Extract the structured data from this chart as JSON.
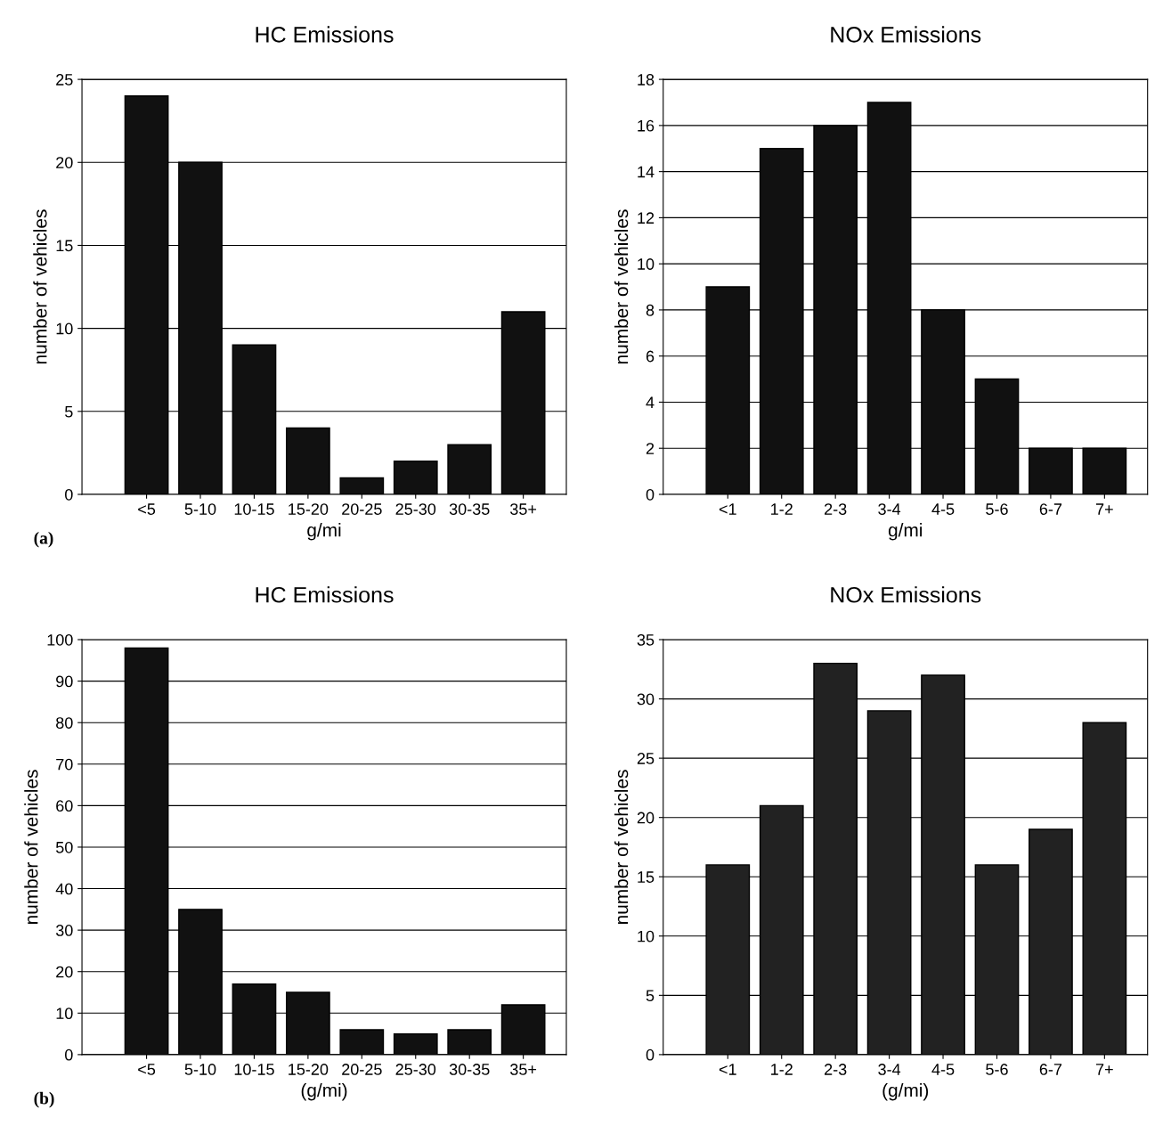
{
  "chart_data": [
    {
      "type": "bar",
      "title": "HC Emissions",
      "xlabel": "g/mi",
      "ylabel": "number of vehicles",
      "categories": [
        "<5",
        "5-10",
        "10-15",
        "15-20",
        "20-25",
        "25-30",
        "30-35",
        "35+"
      ],
      "values": [
        24,
        20,
        9,
        4,
        1,
        2,
        3,
        11
      ],
      "color": "#111111",
      "ylim": [
        0,
        25
      ],
      "yticks": [
        0,
        5,
        10,
        15,
        20,
        25
      ],
      "grid": "y",
      "annotations": [
        "(a)"
      ]
    },
    {
      "type": "bar",
      "title": "NOx Emissions",
      "xlabel": "g/mi",
      "ylabel": "number of vehicles",
      "categories": [
        "<1",
        "1-2",
        "2-3",
        "3-4",
        "4-5",
        "5-6",
        "6-7",
        "7+"
      ],
      "values": [
        9,
        15,
        16,
        17,
        8,
        5,
        2,
        2
      ],
      "color": "#111111",
      "ylim": [
        0,
        18
      ],
      "yticks": [
        0,
        2,
        4,
        6,
        8,
        10,
        12,
        14,
        16,
        18
      ],
      "grid": "y"
    },
    {
      "type": "bar",
      "title": "HC Emissions",
      "xlabel": "(g/mi)",
      "ylabel": "number of vehicles",
      "categories": [
        "<5",
        "5-10",
        "10-15",
        "15-20",
        "20-25",
        "25-30",
        "30-35",
        "35+"
      ],
      "values": [
        98,
        35,
        17,
        15,
        6,
        5,
        6,
        12
      ],
      "color": "#111111",
      "ylim": [
        0,
        100
      ],
      "yticks": [
        0,
        10,
        20,
        30,
        40,
        50,
        60,
        70,
        80,
        90,
        100
      ],
      "grid": "y",
      "annotations": [
        "(b)"
      ]
    },
    {
      "type": "bar",
      "title": "NOx Emissions",
      "xlabel": "(g/mi)",
      "ylabel": "number of vehicles",
      "categories": [
        "<1",
        "1-2",
        "2-3",
        "3-4",
        "4-5",
        "5-6",
        "6-7",
        "7+"
      ],
      "values": [
        16,
        21,
        33,
        29,
        32,
        16,
        19,
        28
      ],
      "color": "#222222",
      "ylim": [
        0,
        35
      ],
      "yticks": [
        0,
        5,
        10,
        15,
        20,
        25,
        30,
        35
      ],
      "grid": "y"
    }
  ]
}
